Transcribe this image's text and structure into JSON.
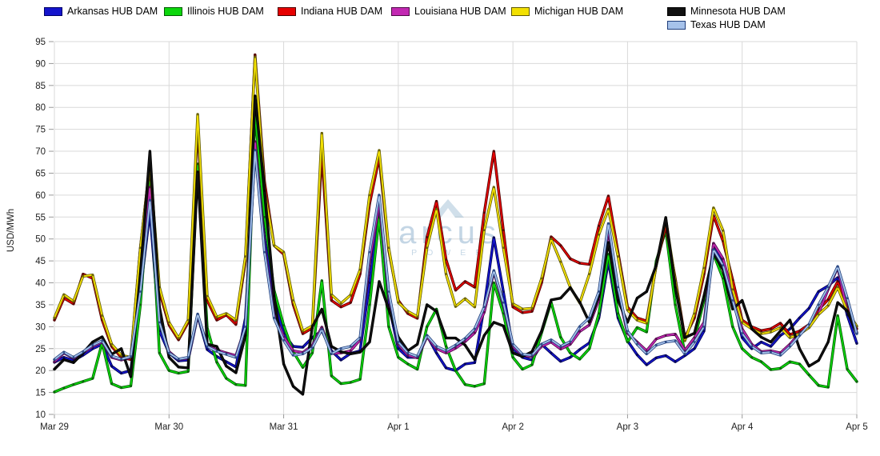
{
  "legend": [
    {
      "label": "Arkansas HUB DAM",
      "color": "#1414CC",
      "border": "#000066"
    },
    {
      "label": "Illinois HUB DAM",
      "color": "#0CD60C",
      "border": "#015A01"
    },
    {
      "label": "Indiana HUB DAM",
      "color": "#E60000",
      "border": "#4D0000"
    },
    {
      "label": "Louisiana HUB DAM",
      "color": "#C228B2",
      "border": "#4E0A46"
    },
    {
      "label": "Michigan HUB DAM",
      "color": "#F2E000",
      "border": "#5F5800"
    },
    {
      "label": "Minnesota HUB DAM",
      "color": "#111111",
      "border": "#000000"
    },
    {
      "label": "Texas HUB DAM",
      "color": "#A6C2EA",
      "border": "#1F3D7A"
    }
  ],
  "watermark": {
    "brand": "arcus",
    "subtitle": "POWER"
  },
  "chart_data": {
    "type": "line",
    "title": "",
    "xlabel": "",
    "ylabel": "USD/MWh",
    "ylim": [
      10,
      95
    ],
    "ytick_step": 5,
    "grid": true,
    "legend_position": "top",
    "x_tick_labels": [
      "Mar 29",
      "Mar 30",
      "Mar 31",
      "Apr 1",
      "Apr 2",
      "Apr 3",
      "Apr 4",
      "Apr 5"
    ],
    "points_per_day": 12,
    "x_sampling_hours": 2,
    "series": [
      {
        "name": "Arkansas HUB DAM",
        "color": "#1414CC",
        "dark": "#00004D",
        "values": [
          21.9,
          23,
          22.3,
          23.5,
          25,
          26,
          21,
          19.4,
          20,
          38,
          56.3,
          29,
          24,
          22.2,
          22.4,
          32.5,
          24.8,
          23.2,
          22,
          20.8,
          32,
          70,
          50,
          36,
          28.4,
          25.5,
          25.3,
          27.5,
          29.1,
          24.5,
          22.4,
          23.9,
          24.5,
          40,
          57,
          35,
          25,
          23,
          23,
          28,
          24,
          20.6,
          20,
          21.5,
          21.8,
          34.6,
          50.3,
          38,
          25,
          23,
          22.4,
          26,
          24,
          22.1,
          23,
          24.8,
          26.3,
          32,
          44.9,
          32,
          26.8,
          23.6,
          21.3,
          22.9,
          23.4,
          22,
          23.4,
          25,
          29,
          49,
          44,
          37,
          27.5,
          25,
          26.5,
          25.5,
          28,
          29.5,
          32,
          34.2,
          38,
          39.3,
          41.2,
          32.6,
          26.2
        ]
      },
      {
        "name": "Illinois HUB DAM",
        "color": "#0CD60C",
        "dark": "#015A01",
        "values": [
          15.1,
          16,
          16.8,
          17.5,
          18.2,
          26.3,
          17,
          16.1,
          16.5,
          35,
          63.5,
          24,
          20,
          19.4,
          19.8,
          67.1,
          29.7,
          21.9,
          18.2,
          16.8,
          16.6,
          78.5,
          55,
          38.3,
          30.3,
          24.3,
          20.7,
          24,
          40.5,
          18.8,
          17,
          17.3,
          18,
          35,
          54.9,
          30,
          23,
          21.5,
          20.3,
          30,
          34,
          25.5,
          20,
          16.8,
          16.4,
          17,
          40,
          33,
          23,
          20.3,
          21.3,
          28.6,
          35.6,
          27.6,
          24,
          22.6,
          25,
          33,
          46.5,
          33,
          26.5,
          29.8,
          28.8,
          45,
          52,
          35,
          24,
          27,
          36,
          46.5,
          41,
          30,
          25,
          23,
          22,
          20.2,
          20.5,
          22,
          21.5,
          19,
          16.6,
          16.2,
          32.5,
          20.3,
          17.5
        ]
      },
      {
        "name": "Indiana HUB DAM",
        "color": "#E60000",
        "dark": "#4D0000",
        "values": [
          31.5,
          36.5,
          35.2,
          42,
          41,
          31.5,
          25.5,
          23,
          22.5,
          48,
          67,
          38,
          30.4,
          27,
          31,
          76,
          36,
          31.5,
          32.7,
          30.5,
          45,
          92,
          63,
          48.5,
          46.5,
          35,
          28.4,
          29.7,
          69.5,
          36,
          34.5,
          35.5,
          42,
          58,
          68.5,
          47.4,
          36,
          33,
          31.9,
          50.4,
          58.6,
          45.3,
          38.3,
          40.3,
          39,
          56,
          70,
          52,
          34.5,
          33.2,
          33.5,
          40,
          50.5,
          48.5,
          45.5,
          44.5,
          44.2,
          53,
          59.8,
          47,
          34.5,
          32,
          31.3,
          44,
          53,
          41,
          27.5,
          32,
          42,
          55.3,
          49.5,
          40.7,
          31.5,
          30,
          29.1,
          29.5,
          30.8,
          28.2,
          29,
          30.5,
          33.9,
          36.2,
          40.3,
          34.5,
          29.5
        ]
      },
      {
        "name": "Louisiana HUB DAM",
        "color": "#C228B2",
        "dark": "#4E0A46",
        "values": [
          22,
          24,
          22.8,
          24,
          25.5,
          26.5,
          23,
          22.4,
          23,
          40,
          61.8,
          31.5,
          24.3,
          22.5,
          22.8,
          32.7,
          25.8,
          24.7,
          24,
          23.4,
          30,
          72.2,
          48,
          33,
          27.7,
          24.5,
          24.1,
          25.7,
          29.9,
          23.9,
          24,
          24.5,
          27,
          45,
          58,
          37,
          26,
          23.5,
          22.9,
          27.7,
          25,
          24,
          25.1,
          26.6,
          28.6,
          33.3,
          42.5,
          35,
          25.5,
          23.4,
          23.2,
          25.5,
          26.5,
          24.9,
          26,
          28.9,
          30.4,
          36.1,
          52,
          38,
          28.5,
          26.5,
          24.5,
          27.2,
          28,
          28.3,
          24.6,
          27.5,
          31,
          49,
          45.5,
          37.5,
          29.5,
          26,
          24.3,
          24.5,
          24,
          26,
          28.5,
          29.8,
          33,
          38.5,
          43.5,
          33.5,
          28.7
        ]
      },
      {
        "name": "Michigan HUB DAM",
        "color": "#F2E000",
        "dark": "#5F5800",
        "values": [
          32,
          37.3,
          35.8,
          41.5,
          41.8,
          32.5,
          26,
          23.5,
          23,
          48,
          67.2,
          39,
          31,
          27.4,
          31.5,
          78.4,
          37,
          32.2,
          33,
          31.5,
          46,
          91.5,
          61,
          48.5,
          47,
          36,
          29,
          30.2,
          74.1,
          37.3,
          35.3,
          37.2,
          43,
          60,
          70.2,
          48,
          35.5,
          33.5,
          32.3,
          48,
          56.8,
          42,
          34.6,
          36.4,
          34.5,
          52,
          61.8,
          48,
          35.2,
          34,
          34.2,
          41,
          50,
          44.8,
          39,
          35.4,
          42,
          51,
          56.8,
          46,
          33.8,
          31.5,
          30.8,
          44,
          54.5,
          40.5,
          26.8,
          33,
          43.4,
          57.1,
          51.9,
          38.5,
          31,
          29.5,
          28.4,
          28.8,
          29.8,
          27.5,
          28.3,
          29.8,
          32.8,
          34.8,
          39,
          33.5,
          30.1
        ]
      },
      {
        "name": "Minnesota HUB DAM",
        "color": "#111111",
        "dark": "#000000",
        "values": [
          20.3,
          22.5,
          21.8,
          24,
          26.5,
          27.7,
          23.7,
          25,
          18.6,
          42,
          70,
          34.5,
          23,
          20.8,
          20.6,
          65.3,
          26,
          25.5,
          21,
          19.5,
          28,
          82.6,
          61,
          37,
          21.5,
          16.4,
          14.6,
          30,
          34,
          25.5,
          24.3,
          23.8,
          24.2,
          26.5,
          40.3,
          34,
          27.6,
          24.5,
          26,
          35,
          33.5,
          27.4,
          27.4,
          25.8,
          22.5,
          28,
          31,
          30.2,
          24,
          23.2,
          24.3,
          29,
          36.1,
          36.5,
          38.9,
          35.6,
          31,
          37,
          49.2,
          36,
          31,
          36.5,
          38,
          44,
          54.9,
          39,
          27.5,
          28.5,
          37,
          46.7,
          43,
          34,
          36,
          29.5,
          27.6,
          26.5,
          29,
          31.5,
          25,
          21,
          22.3,
          26.5,
          35.5,
          33.6,
          28.5
        ]
      },
      {
        "name": "Texas HUB DAM",
        "color": "#A6C2EA",
        "dark": "#1F3D7A",
        "values": [
          22.5,
          24.2,
          23,
          24.3,
          25.8,
          26.8,
          23.3,
          22.6,
          23.2,
          38,
          58.8,
          31,
          24,
          22.6,
          23,
          32.9,
          25.5,
          24.4,
          23.7,
          23,
          30,
          70.2,
          47,
          32,
          26.9,
          23.5,
          23.8,
          25.2,
          29.4,
          23.8,
          25,
          25.5,
          27.5,
          47,
          60,
          38,
          26.5,
          24,
          23.2,
          28,
          25.5,
          24.5,
          25.8,
          27.3,
          29.5,
          34.5,
          42.8,
          35.5,
          26,
          23.7,
          23.5,
          26,
          27,
          25.5,
          26.6,
          30,
          32,
          38,
          53.5,
          39,
          29,
          26,
          23.8,
          25.8,
          26.5,
          26.8,
          23.8,
          26.5,
          30,
          47.6,
          44,
          36,
          28.5,
          25.5,
          24,
          24.2,
          23.5,
          25.5,
          28,
          30.5,
          35,
          39,
          43.7,
          36.5,
          28.4
        ]
      }
    ]
  }
}
